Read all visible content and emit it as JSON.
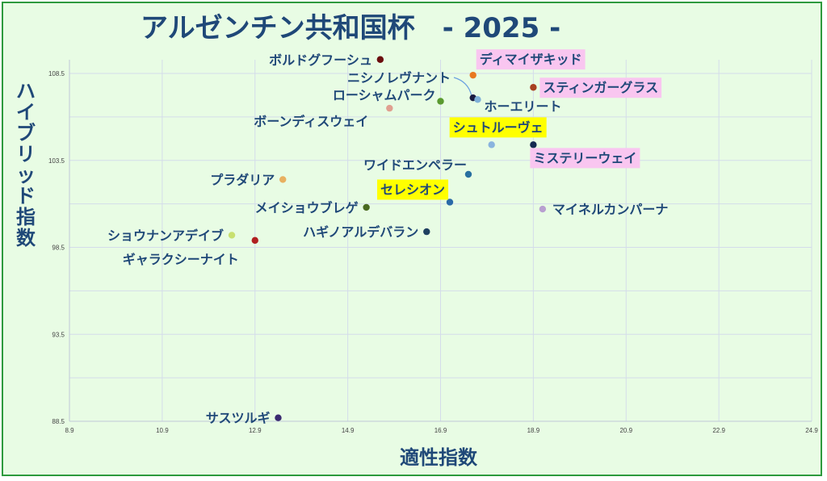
{
  "chart_data": {
    "type": "scatter",
    "title": "アルゼンチン共和国杯　- 2025 -",
    "xlabel": "適性指数",
    "ylabel": "ハイブリッド指数",
    "xlim": [
      8.9,
      24.9
    ],
    "ylim": [
      88.5,
      110.0
    ],
    "xticks": [
      "8.9",
      "10.9",
      "12.9",
      "14.9",
      "16.9",
      "18.9",
      "20.9",
      "22.9",
      "24.9"
    ],
    "yticks": [
      "88.5",
      "93.5",
      "98.5",
      "103.5",
      "108.5"
    ],
    "grid": true,
    "colors": {
      "label_text": "#1f4878",
      "highlight_yellow": "#ffff00",
      "highlight_pink": "#f9c6f0",
      "background": "#e8fce4",
      "border": "#2e9a3e"
    },
    "points": [
      {
        "name": "ボルドグフーシュ",
        "x": 15.6,
        "y": 109.3,
        "color": "#6b0e0e",
        "highlight": "none"
      },
      {
        "name": "ディマイザキッド",
        "x": 17.6,
        "y": 108.4,
        "color": "#e87820",
        "highlight": "pink"
      },
      {
        "name": "ニシノレヴナント",
        "x": 17.6,
        "y": 107.1,
        "color": "#1a1a40",
        "highlight": "none"
      },
      {
        "name": "スティンガーグラス",
        "x": 18.9,
        "y": 107.7,
        "color": "#a84020",
        "highlight": "pink"
      },
      {
        "name": "ホーエリート",
        "x": 17.7,
        "y": 107.0,
        "color": "#7fb0d8",
        "highlight": "none"
      },
      {
        "name": "ローシャムパーク",
        "x": 16.9,
        "y": 106.9,
        "color": "#5a9a30",
        "highlight": "none"
      },
      {
        "name": "ボーンディスウェイ",
        "x": 15.8,
        "y": 106.5,
        "color": "#e0a090",
        "highlight": "none"
      },
      {
        "name": "シュトルーヴェ",
        "x": 18.0,
        "y": 104.4,
        "color": "#8ab4de",
        "highlight": "yellow"
      },
      {
        "name": "ミステリーウェイ",
        "x": 18.9,
        "y": 104.4,
        "color": "#142a50",
        "highlight": "pink"
      },
      {
        "name": "ワイドエンペラー",
        "x": 17.5,
        "y": 102.7,
        "color": "#2870a0",
        "highlight": "none"
      },
      {
        "name": "プラダリア",
        "x": 13.5,
        "y": 102.4,
        "color": "#e8b060",
        "highlight": "none"
      },
      {
        "name": "セレシオン",
        "x": 17.1,
        "y": 101.1,
        "color": "#2a6aa8",
        "highlight": "yellow"
      },
      {
        "name": "メイショウブレゲ",
        "x": 15.3,
        "y": 100.8,
        "color": "#4a6a20",
        "highlight": "none"
      },
      {
        "name": "マイネルカンパーナ",
        "x": 19.1,
        "y": 100.7,
        "color": "#b8a0d0",
        "highlight": "none"
      },
      {
        "name": "ハギノアルデバラン",
        "x": 16.6,
        "y": 99.4,
        "color": "#1f4060",
        "highlight": "none"
      },
      {
        "name": "ショウナンアデイブ",
        "x": 12.4,
        "y": 99.2,
        "color": "#c8e070",
        "highlight": "none"
      },
      {
        "name": "ギャラクシーナイト",
        "x": 12.9,
        "y": 98.9,
        "color": "#b02020",
        "highlight": "none"
      },
      {
        "name": "サスツルギ",
        "x": 13.4,
        "y": 88.7,
        "color": "#3a2a70",
        "highlight": "none"
      }
    ]
  }
}
